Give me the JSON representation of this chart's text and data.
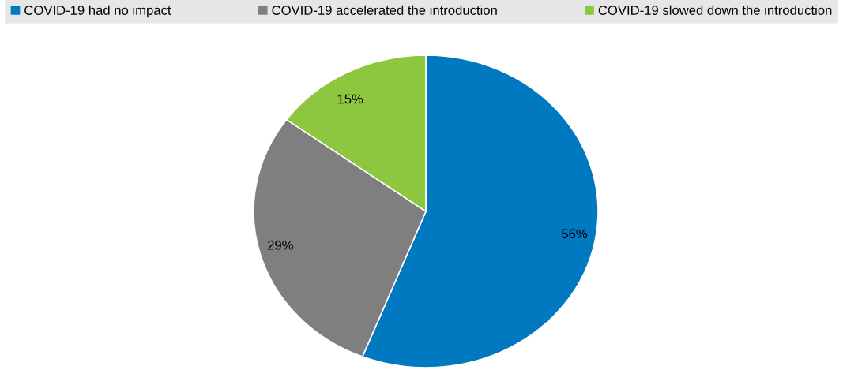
{
  "chart_data": {
    "type": "pie",
    "categories": [
      "COVID-19 had no impact",
      "COVID-19 accelerated the introduction",
      "COVID-19 slowed down the introduction"
    ],
    "values": [
      56,
      29,
      15
    ],
    "colors": [
      "#0079c1",
      "#7f7f7f",
      "#8dc63f"
    ],
    "value_labels": [
      "56%",
      "29%",
      "15%"
    ],
    "legend": "top"
  }
}
